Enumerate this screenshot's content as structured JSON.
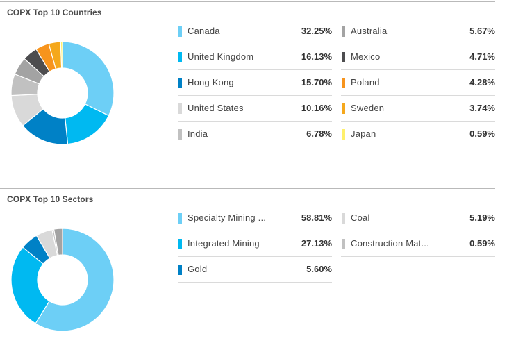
{
  "chart_data": [
    {
      "type": "pie",
      "title": "COPX Top 10 Countries",
      "labels": [
        "Canada",
        "United Kingdom",
        "Hong Kong",
        "United States",
        "India",
        "Australia",
        "Mexico",
        "Poland",
        "Sweden",
        "Japan"
      ],
      "values": [
        32.25,
        16.13,
        15.7,
        10.16,
        6.78,
        5.67,
        4.71,
        4.28,
        3.74,
        0.59
      ],
      "value_labels": [
        "32.25%",
        "16.13%",
        "15.70%",
        "10.16%",
        "6.78%",
        "5.67%",
        "4.71%",
        "4.28%",
        "3.74%",
        "0.59%"
      ],
      "colors": [
        "#6dcff6",
        "#00b9f1",
        "#0081c6",
        "#d9d9d9",
        "#c1c1c1",
        "#a3a3a3",
        "#4d4d4f",
        "#f7941d",
        "#f5a81c",
        "#fff06b"
      ],
      "legend_columns": [
        [
          0,
          1,
          2,
          3,
          4
        ],
        [
          5,
          6,
          7,
          8,
          9
        ]
      ]
    },
    {
      "type": "pie",
      "title": "COPX Top 10 Sectors",
      "labels": [
        "Specialty Mining ...",
        "Integrated Mining",
        "Gold",
        "Coal",
        "Construction Mat..."
      ],
      "values": [
        58.81,
        27.13,
        5.6,
        5.19,
        0.59
      ],
      "value_labels": [
        "58.81%",
        "27.13%",
        "5.60%",
        "5.19%",
        "0.59%"
      ],
      "colors": [
        "#6dcff6",
        "#00b9f1",
        "#0081c6",
        "#d9d9d9",
        "#c1c1c1"
      ],
      "extra_slices": [
        {
          "value": 2.68,
          "color": "#a3a3a3"
        }
      ],
      "legend_columns": [
        [
          0,
          1,
          2
        ],
        [
          3,
          4
        ]
      ]
    }
  ]
}
